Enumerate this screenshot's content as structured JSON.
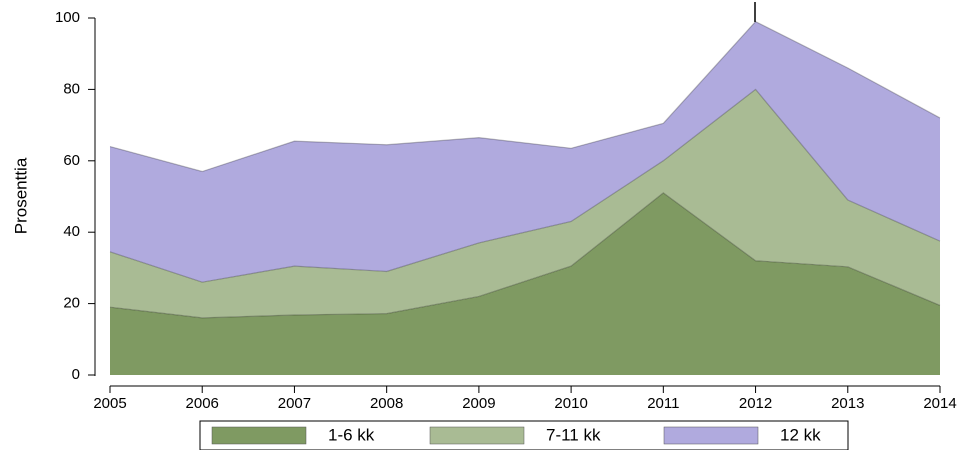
{
  "chart_data": {
    "type": "area",
    "y_label": "Prosenttia",
    "categories": [
      "2005",
      "2006",
      "2007",
      "2008",
      "2009",
      "2010",
      "2011",
      "2012",
      "2013",
      "2014"
    ],
    "series": [
      {
        "name": "1-6 kk",
        "color": "#7f9a62",
        "values": [
          19,
          16,
          16.8,
          17.2,
          22,
          30.5,
          51,
          32,
          30.3,
          19.5
        ]
      },
      {
        "name": "7-11 kk",
        "color": "#a9bb94",
        "values": [
          15.5,
          10,
          13.7,
          11.8,
          15,
          12.5,
          9,
          48,
          18.7,
          18
        ]
      },
      {
        "name": "12 kk",
        "color": "#b0aade",
        "values": [
          29.5,
          31,
          35,
          35.5,
          29.5,
          20.5,
          10.5,
          19,
          37,
          34.5
        ]
      }
    ],
    "stacked": true,
    "ylim": [
      0,
      100
    ],
    "yticks": [
      0,
      20,
      40,
      60,
      80,
      100
    ],
    "grid": false
  }
}
